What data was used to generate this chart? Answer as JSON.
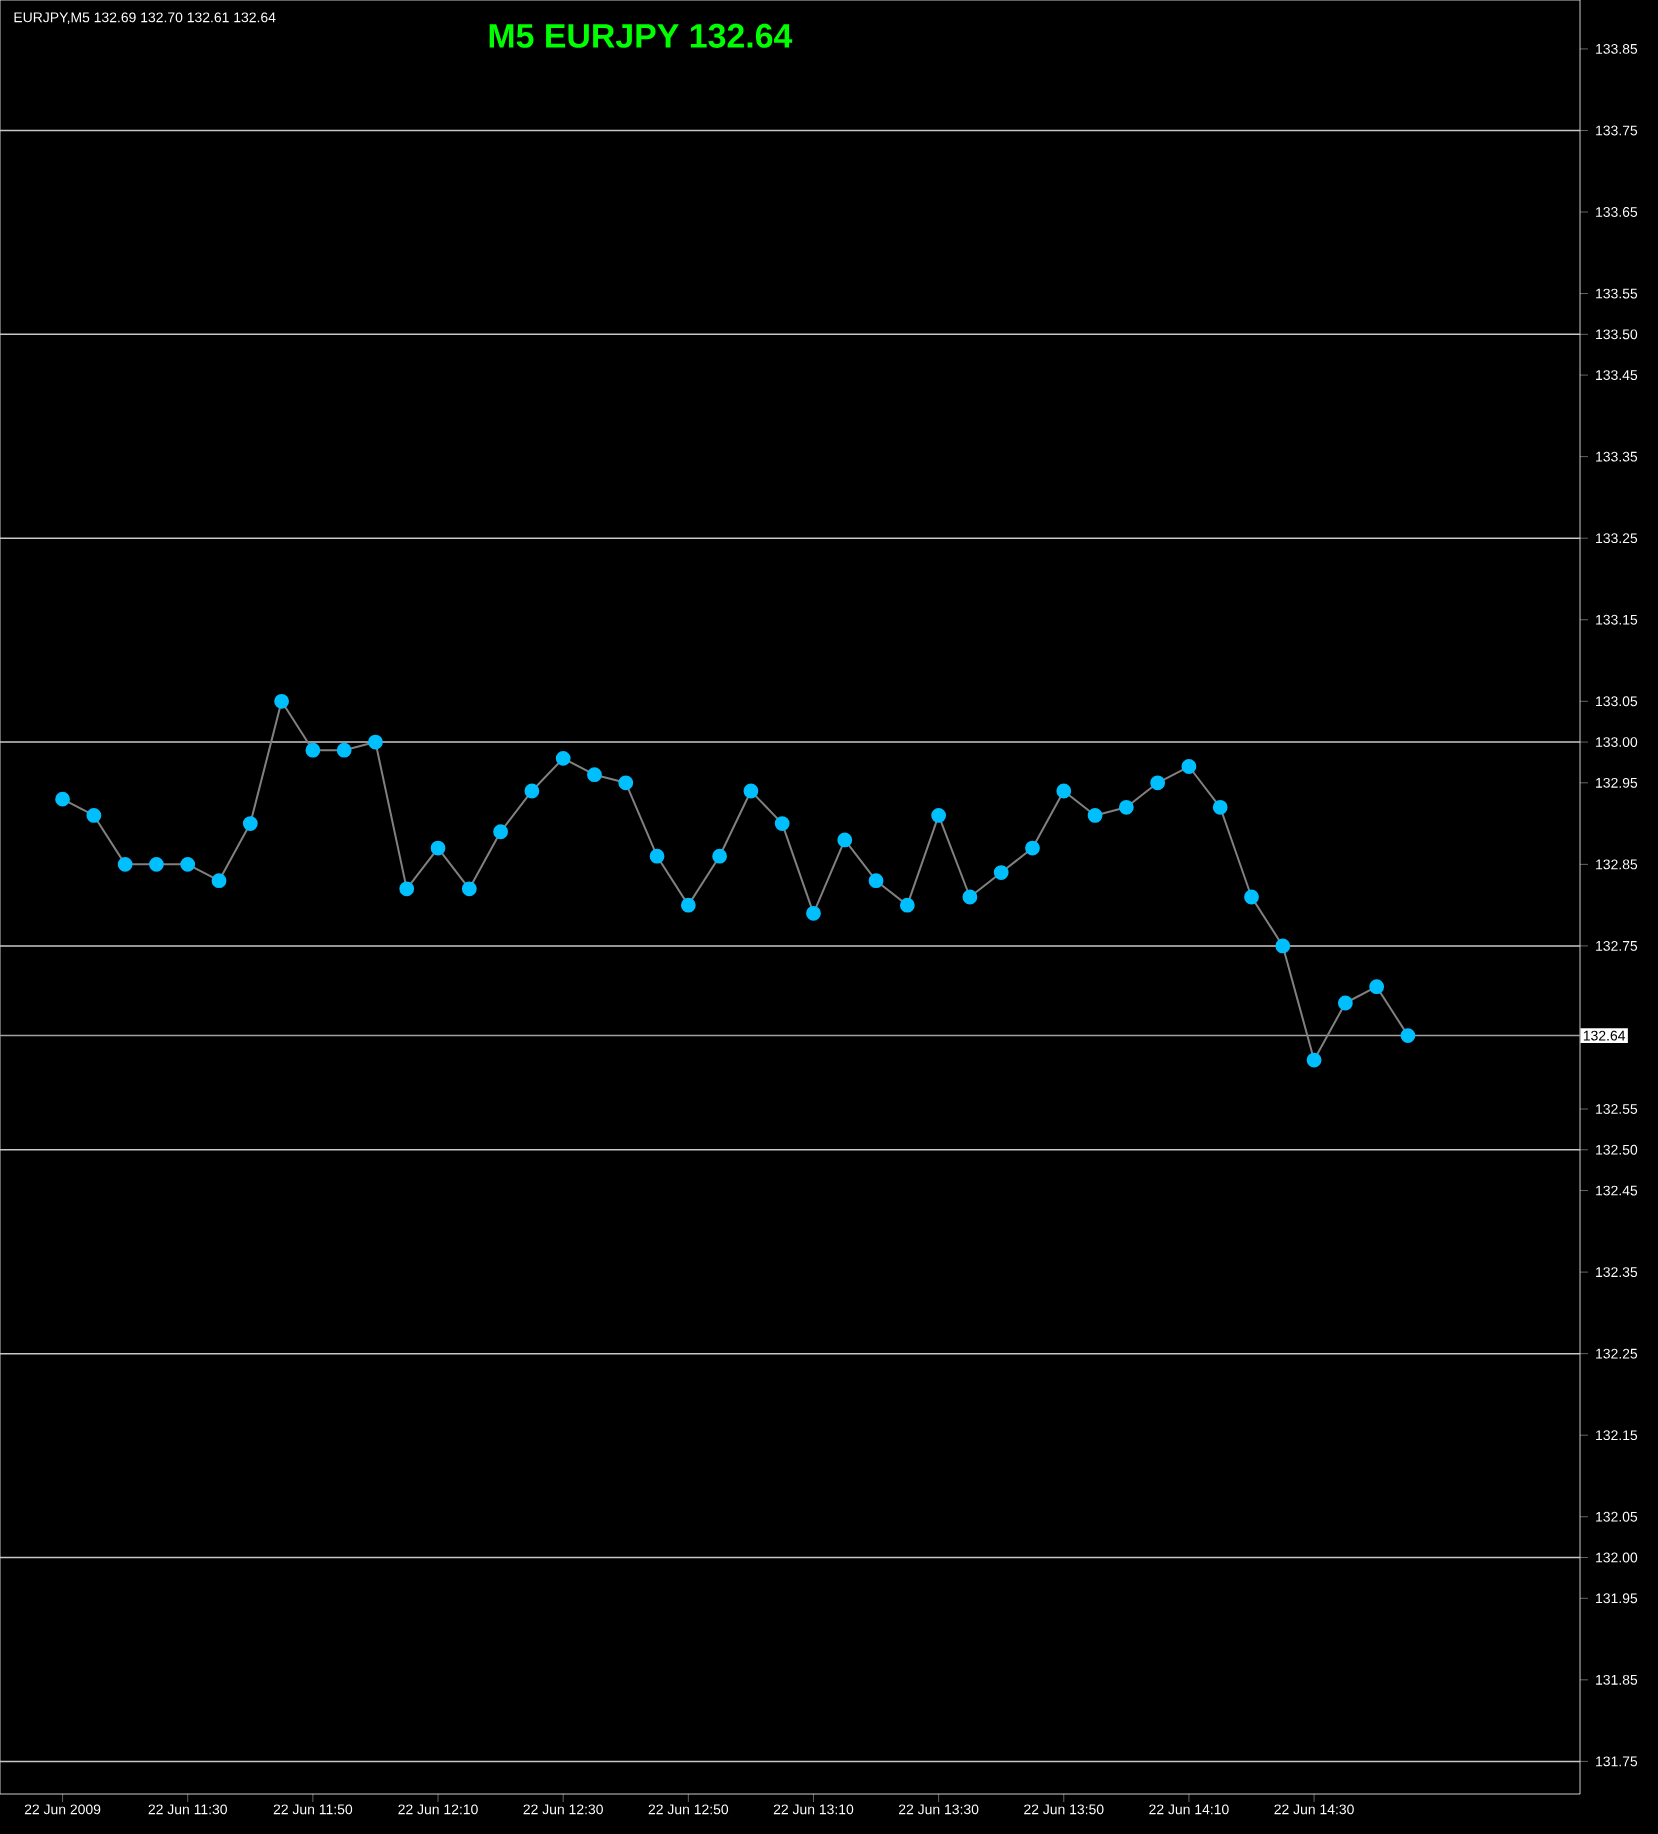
{
  "chart_data": {
    "type": "line",
    "title": "M5 EURJPY 132.64",
    "subtitle": "EURJPY,M5  132.69 132.70 132.61 132.64",
    "categories": [
      "22 Jun 2009",
      null,
      null,
      null,
      "22 Jun 11:30",
      null,
      null,
      null,
      "22 Jun 11:50",
      null,
      null,
      null,
      "22 Jun 12:10",
      null,
      null,
      null,
      "22 Jun 12:30",
      null,
      null,
      null,
      "22 Jun 12:50",
      null,
      null,
      null,
      "22 Jun 13:10",
      null,
      null,
      null,
      "22 Jun 13:30",
      null,
      null,
      null,
      "22 Jun 13:50",
      null,
      null,
      null,
      "22 Jun 14:10",
      null,
      null,
      null,
      "22 Jun 14:30",
      null,
      null,
      null
    ],
    "series": [
      {
        "color": "#00bfff",
        "values": [
          132.93,
          132.91,
          132.85,
          132.85,
          132.85,
          132.83,
          132.9,
          133.05,
          132.99,
          132.99,
          133.0,
          132.82,
          132.87,
          132.82,
          132.89,
          132.94,
          132.98,
          132.96,
          132.95,
          132.86,
          132.8,
          132.86,
          132.94,
          132.9,
          132.79,
          132.88,
          132.83,
          132.8,
          132.91,
          132.81,
          132.84,
          132.87,
          132.94,
          132.91,
          132.92,
          132.95,
          132.97,
          132.92,
          132.81,
          132.75,
          132.61,
          132.68,
          132.7,
          132.64
        ]
      }
    ],
    "ylim": [
      131.71,
      133.91
    ],
    "yticks": [
      133.85,
      133.75,
      133.65,
      133.55,
      {
        "value": 133.5,
        "label": "133.50"
      },
      133.45,
      133.35,
      133.25,
      133.15,
      133.05,
      {
        "value": 133.0,
        "label": "133.00"
      },
      132.95,
      132.85,
      132.75,
      132.55,
      {
        "value": 132.5,
        "label": "132.50"
      },
      132.45,
      132.35,
      132.25,
      132.15,
      132.05,
      {
        "value": 132.0,
        "label": "132.00"
      },
      131.95,
      131.85,
      131.75
    ],
    "ref_lines": [
      {
        "axis": "y",
        "value": 133.75,
        "color": "#c8c8c8"
      },
      {
        "axis": "y",
        "value": 133.5,
        "color": "#c8c8c8"
      },
      {
        "axis": "y",
        "value": 133.25,
        "color": "#c8c8c8"
      },
      {
        "axis": "y",
        "value": 133.0,
        "color": "#c8c8c8"
      },
      {
        "axis": "y",
        "value": 132.75,
        "color": "#c8c8c8"
      },
      {
        "axis": "y",
        "value": 132.5,
        "color": "#c8c8c8"
      },
      {
        "axis": "y",
        "value": 132.25,
        "color": "#c8c8c8"
      },
      {
        "axis": "y",
        "value": 132.0,
        "color": "#c8c8c8"
      },
      {
        "axis": "y",
        "value": 131.75,
        "color": "#c8c8c8"
      },
      {
        "axis": "y",
        "value": 132.64,
        "label": "132.64",
        "color": "#a0a0a0"
      }
    ],
    "marker": "circle",
    "line_style": "solid"
  }
}
